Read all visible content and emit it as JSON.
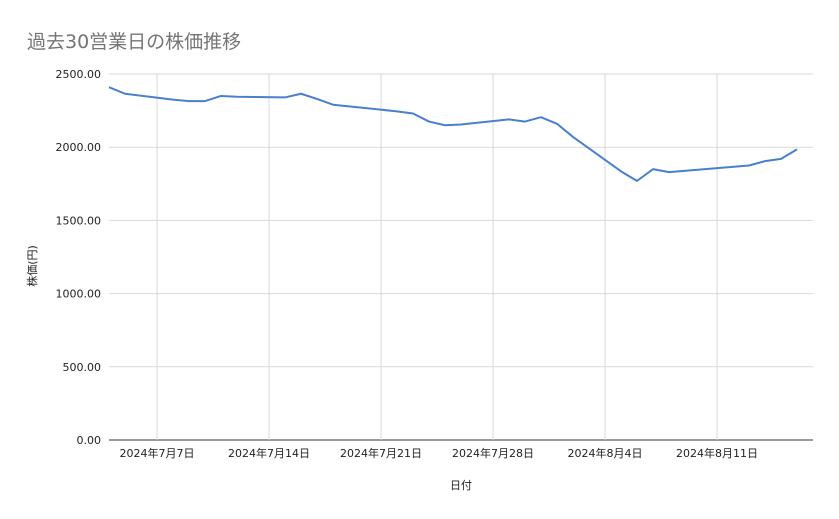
{
  "chart_data": {
    "type": "line",
    "title": "過去30営業日の株価推移",
    "xlabel": "日付",
    "ylabel": "株価(円)",
    "ylim": [
      0,
      2500
    ],
    "yticks": [
      "0.00",
      "500.00",
      "1000.00",
      "1500.00",
      "2000.00",
      "2500.00"
    ],
    "xticks": [
      {
        "date": "2024-07-07",
        "label": "2024年7月7日"
      },
      {
        "date": "2024-07-14",
        "label": "2024年7月14日"
      },
      {
        "date": "2024-07-21",
        "label": "2024年7月21日"
      },
      {
        "date": "2024-07-28",
        "label": "2024年7月28日"
      },
      {
        "date": "2024-08-04",
        "label": "2024年8月4日"
      },
      {
        "date": "2024-08-11",
        "label": "2024年8月11日"
      }
    ],
    "xlim": [
      "2024-07-04",
      "2024-08-17"
    ],
    "grid": true,
    "line_color": "#4a7fcf",
    "series": [
      {
        "points": [
          {
            "x": "2024-07-04",
            "y": 2410
          },
          {
            "x": "2024-07-05",
            "y": 2365
          },
          {
            "x": "2024-07-08",
            "y": 2325
          },
          {
            "x": "2024-07-09",
            "y": 2315
          },
          {
            "x": "2024-07-10",
            "y": 2315
          },
          {
            "x": "2024-07-11",
            "y": 2350
          },
          {
            "x": "2024-07-12",
            "y": 2345
          },
          {
            "x": "2024-07-15",
            "y": 2340
          },
          {
            "x": "2024-07-16",
            "y": 2365
          },
          {
            "x": "2024-07-17",
            "y": 2330
          },
          {
            "x": "2024-07-18",
            "y": 2290
          },
          {
            "x": "2024-07-22",
            "y": 2245
          },
          {
            "x": "2024-07-23",
            "y": 2230
          },
          {
            "x": "2024-07-24",
            "y": 2175
          },
          {
            "x": "2024-07-25",
            "y": 2150
          },
          {
            "x": "2024-07-26",
            "y": 2155
          },
          {
            "x": "2024-07-29",
            "y": 2190
          },
          {
            "x": "2024-07-30",
            "y": 2175
          },
          {
            "x": "2024-07-31",
            "y": 2205
          },
          {
            "x": "2024-08-01",
            "y": 2160
          },
          {
            "x": "2024-08-02",
            "y": 2070
          },
          {
            "x": "2024-08-05",
            "y": 1835
          },
          {
            "x": "2024-08-06",
            "y": 1770
          },
          {
            "x": "2024-08-07",
            "y": 1850
          },
          {
            "x": "2024-08-08",
            "y": 1830
          },
          {
            "x": "2024-08-13",
            "y": 1875
          },
          {
            "x": "2024-08-14",
            "y": 1905
          },
          {
            "x": "2024-08-15",
            "y": 1920
          },
          {
            "x": "2024-08-16",
            "y": 1985
          }
        ]
      }
    ]
  }
}
